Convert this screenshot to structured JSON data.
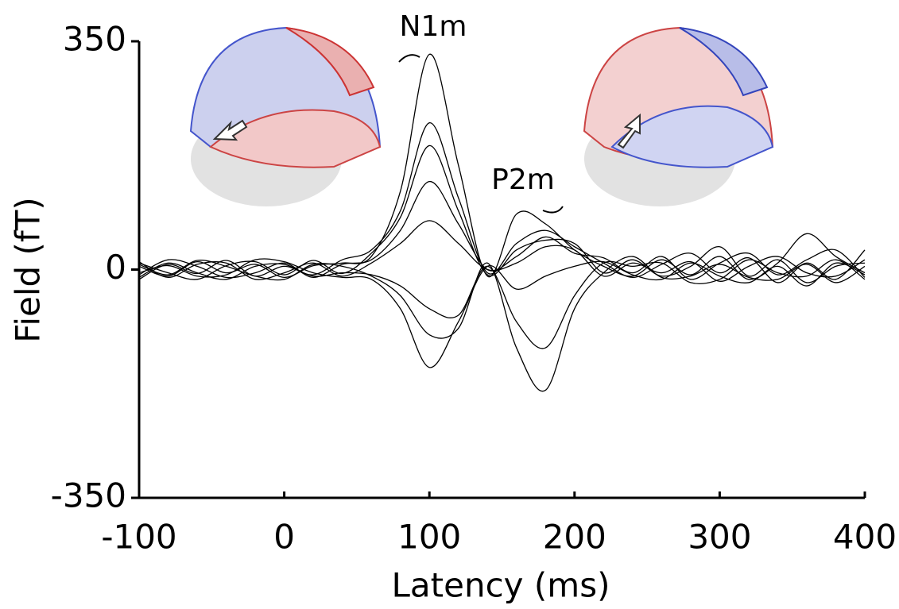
{
  "chart_data": {
    "type": "line",
    "x_label": "Latency (ms)",
    "y_label": "Field (fT)",
    "annotations": [
      "N1m",
      "P2m"
    ],
    "x": [
      -100,
      -80,
      -60,
      -40,
      -20,
      0,
      20,
      40,
      60,
      80,
      100,
      120,
      140,
      160,
      180,
      200,
      220,
      240,
      260,
      280,
      300,
      320,
      340,
      360,
      380,
      400
    ],
    "series": [
      {
        "color": "#000000",
        "values": [
          5,
          -10,
          12,
          -5,
          8,
          -12,
          6,
          10,
          20,
          120,
          330,
          160,
          -10,
          85,
          70,
          30,
          5,
          -10,
          15,
          -8,
          20,
          -15,
          10,
          55,
          20,
          -5
        ]
      },
      {
        "color": "#000000",
        "values": [
          -15,
          8,
          -6,
          14,
          -10,
          5,
          -8,
          15,
          30,
          90,
          225,
          110,
          -5,
          40,
          60,
          35,
          10,
          -12,
          8,
          25,
          -5,
          18,
          -20,
          10,
          -15,
          30
        ]
      },
      {
        "color": "#000000",
        "values": [
          10,
          -5,
          -15,
          6,
          12,
          -8,
          14,
          -6,
          25,
          80,
          190,
          90,
          -8,
          30,
          45,
          40,
          -5,
          15,
          -10,
          5,
          35,
          -10,
          15,
          -20,
          5,
          10
        ]
      },
      {
        "color": "#000000",
        "values": [
          -8,
          15,
          5,
          -12,
          -5,
          10,
          -12,
          8,
          15,
          60,
          135,
          70,
          0,
          20,
          50,
          25,
          18,
          -5,
          20,
          -15,
          10,
          25,
          -8,
          15,
          30,
          -12
        ]
      },
      {
        "color": "#000000",
        "values": [
          12,
          -12,
          8,
          10,
          -15,
          -5,
          10,
          -10,
          10,
          40,
          75,
          40,
          0,
          10,
          35,
          30,
          -10,
          10,
          -5,
          12,
          -18,
          5,
          20,
          -5,
          -10,
          15
        ]
      },
      {
        "color": "#000000",
        "values": [
          -5,
          6,
          -10,
          -8,
          15,
          12,
          -5,
          -12,
          -15,
          -60,
          -150,
          -80,
          5,
          -30,
          -10,
          5,
          12,
          -8,
          -15,
          10,
          -10,
          -20,
          5,
          -25,
          10,
          -8
        ]
      },
      {
        "color": "#000000",
        "values": [
          8,
          -8,
          14,
          5,
          -10,
          -15,
          8,
          5,
          -10,
          -40,
          -100,
          -90,
          10,
          -120,
          -185,
          -60,
          -5,
          20,
          -12,
          -10,
          8,
          -12,
          -15,
          8,
          -20,
          5
        ]
      },
      {
        "color": "#000000",
        "values": [
          -12,
          10,
          -5,
          -15,
          5,
          8,
          -10,
          -5,
          -8,
          -25,
          -60,
          -70,
          5,
          -80,
          -120,
          -40,
          10,
          5,
          10,
          -20,
          -15,
          15,
          -5,
          -10,
          15,
          -15
        ]
      }
    ],
    "xlim": [
      -100,
      400
    ],
    "xticks": [
      -100,
      0,
      100,
      200,
      300,
      400
    ],
    "ylim": [
      -350,
      350
    ],
    "yticks": [
      350,
      0,
      -350
    ],
    "grid": false
  }
}
